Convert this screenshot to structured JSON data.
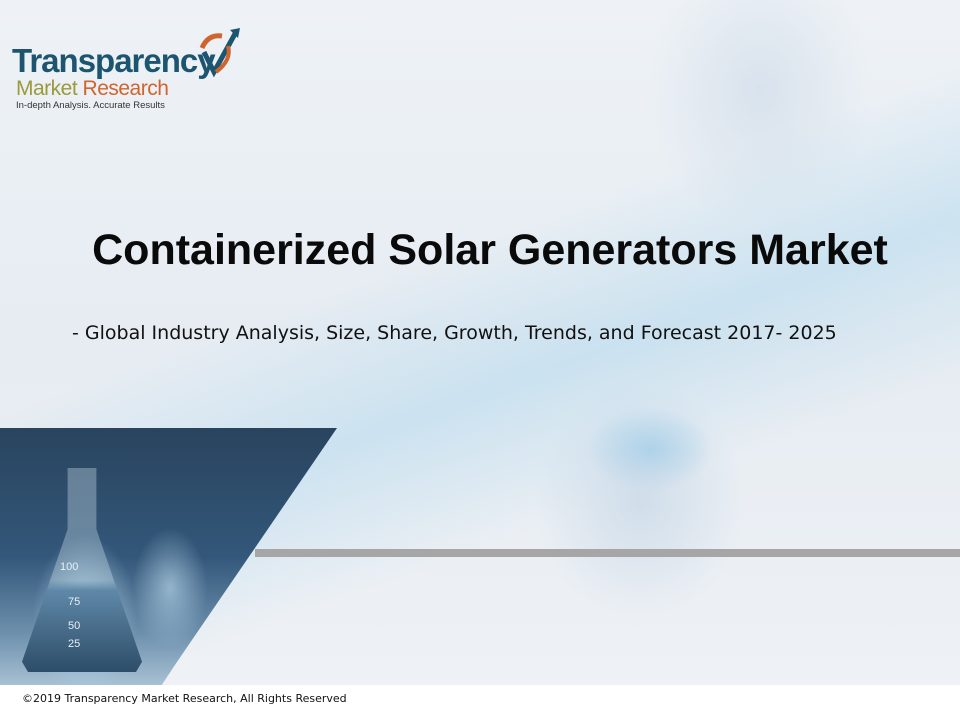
{
  "logo": {
    "line1": "Transparency",
    "line2a": "Market",
    "line2b": "Research",
    "tagline": "In-depth Analysis. Accurate Results",
    "colors": {
      "primary": "#1d5570",
      "olive": "#9b9a3a",
      "orange": "#d0642e"
    }
  },
  "slide": {
    "title": "Containerized Solar Generators Market",
    "subtitle": "- Global Industry Analysis, Size, Share, Growth, Trends, and Forecast 2017- 2025"
  },
  "photo": {
    "flask_marks": [
      "100",
      "75",
      "50",
      "25"
    ]
  },
  "footer": {
    "copyright": "©2019 Transparency Market Research, All Rights Reserved"
  }
}
